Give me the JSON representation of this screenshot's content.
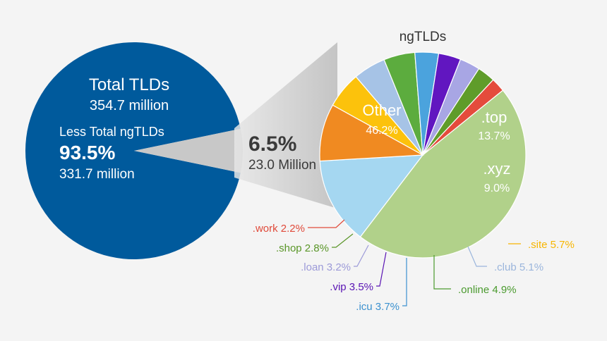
{
  "chart_data": [
    {
      "type": "pie",
      "categories": [
        "Less Total ngTLDs",
        "ngTLDs"
      ],
      "values": [
        93.5,
        6.5
      ],
      "labels": {
        "total_title": "Total TLDs",
        "total_value": "354.7 million",
        "less_label": "Less Total ngTLDs",
        "less_pct": "93.5%",
        "less_value": "331.7 million",
        "ng_pct": "6.5%",
        "ng_value": "23.0 Million"
      },
      "colors": [
        "#005a9c",
        "#c8c8c8"
      ]
    },
    {
      "type": "pie",
      "title": "ngTLDs",
      "slices": [
        {
          "name": "Other",
          "value": 46.2,
          "label": "Other",
          "value_label": "46.2%",
          "color": "#b1d18a",
          "text_color": "#ffffff"
        },
        {
          "name": ".top",
          "value": 13.7,
          "label": ".top",
          "value_label": "13.7%",
          "color": "#a5d7f1",
          "text_color": "#ffffff"
        },
        {
          "name": ".xyz",
          "value": 9.0,
          "label": ".xyz",
          "value_label": "9.0%",
          "color": "#f08a21",
          "text_color": "#ffffff"
        },
        {
          "name": ".site",
          "value": 5.7,
          "label": ".site 5.7%",
          "color": "#fcc20c",
          "text_color": "#f7b500"
        },
        {
          "name": ".club",
          "value": 5.1,
          "label": ".club 5.1%",
          "color": "#a6c3e6",
          "text_color": "#9ab5dc"
        },
        {
          "name": ".online",
          "value": 4.9,
          "label": ".online 4.9%",
          "color": "#5cac3e",
          "text_color": "#4a9a2e"
        },
        {
          "name": ".icu",
          "value": 3.7,
          "label": ".icu 3.7%",
          "color": "#4ba3dd",
          "text_color": "#3c91cf"
        },
        {
          "name": ".vip",
          "value": 3.5,
          "label": ".vip 3.5%",
          "color": "#6116c0",
          "text_color": "#5a14b4"
        },
        {
          "name": ".loan",
          "value": 3.2,
          "label": ".loan 3.2%",
          "color": "#a8a6e4",
          "text_color": "#9c9ad8"
        },
        {
          "name": ".shop",
          "value": 2.8,
          "label": ".shop 2.8%",
          "color": "#5f9c2a",
          "text_color": "#5a9628"
        },
        {
          "name": ".work",
          "value": 2.2,
          "label": ".work 2.2%",
          "color": "#e44b3c",
          "text_color": "#e04a3a"
        }
      ]
    }
  ]
}
